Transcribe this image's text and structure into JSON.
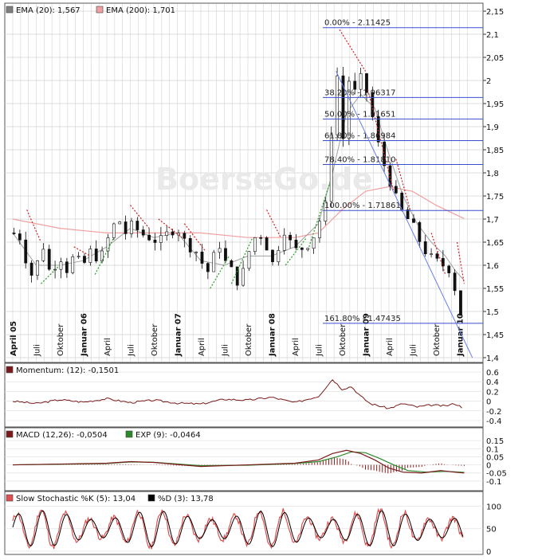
{
  "chart_data": [
    {
      "type": "candlestick",
      "panel": "price",
      "legend": [
        {
          "label": "EMA (20): 1,567",
          "color": "#7f7f7f"
        },
        {
          "label": "EMA (200): 1,701",
          "color": "#f0a0a0"
        }
      ],
      "watermark": "BoerseGo.de",
      "ylim": [
        1.4,
        2.15
      ],
      "yticks": [
        "2,15",
        "2,1",
        "2,05",
        "2",
        "1,95",
        "1,9",
        "1,85",
        "1,8",
        "1,75",
        "1,7",
        "1,65",
        "1,6",
        "1,55",
        "1,5",
        "1,45",
        "1,4"
      ],
      "xtick_labels": [
        {
          "label": "April 05",
          "major": true
        },
        {
          "label": "Juli",
          "major": false
        },
        {
          "label": "Oktober",
          "major": false
        },
        {
          "label": "Januar 06",
          "major": true
        },
        {
          "label": "April",
          "major": false
        },
        {
          "label": "Juli",
          "major": false
        },
        {
          "label": "Oktober",
          "major": false
        },
        {
          "label": "Januar 07",
          "major": true
        },
        {
          "label": "April",
          "major": false
        },
        {
          "label": "Juli",
          "major": false
        },
        {
          "label": "Oktober",
          "major": false
        },
        {
          "label": "Januar 08",
          "major": true
        },
        {
          "label": "April",
          "major": false
        },
        {
          "label": "Juli",
          "major": false
        },
        {
          "label": "Oktober",
          "major": false
        },
        {
          "label": "Januar 09",
          "major": true
        },
        {
          "label": "April",
          "major": false
        },
        {
          "label": "Juli",
          "major": false
        },
        {
          "label": "Oktober",
          "major": false
        },
        {
          "label": "Januar 10",
          "major": true
        }
      ],
      "fibonacci": [
        {
          "label": "0.00% - 2.11425",
          "value": 2.11425
        },
        {
          "label": "38.20% - 1.96317",
          "value": 1.96317
        },
        {
          "label": "50.00% - 1.91651",
          "value": 1.91651
        },
        {
          "label": "61.80% - 1.86984",
          "value": 1.86984
        },
        {
          "label": "78.40% - 1.81810",
          "value": 1.8181
        },
        {
          "label": "100.00% - 1.71861",
          "value": 1.71861
        },
        {
          "label": "161.80% - 1.47435",
          "value": 1.47435
        }
      ],
      "close_path": [
        [
          0,
          1.67
        ],
        [
          0.3,
          1.66
        ],
        [
          0.5,
          1.62
        ],
        [
          0.8,
          1.58
        ],
        [
          1.0,
          1.6
        ],
        [
          1.3,
          1.64
        ],
        [
          1.6,
          1.58
        ],
        [
          2.0,
          1.62
        ],
        [
          2.3,
          1.59
        ],
        [
          2.6,
          1.62
        ],
        [
          3.0,
          1.6
        ],
        [
          3.3,
          1.63
        ],
        [
          3.7,
          1.61
        ],
        [
          4.0,
          1.65
        ],
        [
          4.2,
          1.68
        ],
        [
          4.5,
          1.7
        ],
        [
          4.8,
          1.67
        ],
        [
          5.1,
          1.69
        ],
        [
          5.4,
          1.67
        ],
        [
          5.8,
          1.66
        ],
        [
          6.2,
          1.65
        ],
        [
          6.6,
          1.67
        ],
        [
          7.0,
          1.68
        ],
        [
          7.2,
          1.66
        ],
        [
          7.5,
          1.64
        ],
        [
          7.8,
          1.63
        ],
        [
          8.1,
          1.6
        ],
        [
          8.4,
          1.58
        ],
        [
          8.7,
          1.66
        ],
        [
          9.0,
          1.61
        ],
        [
          9.3,
          1.59
        ],
        [
          9.6,
          1.56
        ],
        [
          9.9,
          1.6
        ],
        [
          10.1,
          1.64
        ],
        [
          10.4,
          1.67
        ],
        [
          10.7,
          1.66
        ],
        [
          11.0,
          1.6
        ],
        [
          11.2,
          1.62
        ],
        [
          11.5,
          1.68
        ],
        [
          11.8,
          1.65
        ],
        [
          12.1,
          1.63
        ],
        [
          12.4,
          1.64
        ],
        [
          12.7,
          1.65
        ],
        [
          13.0,
          1.69
        ],
        [
          13.3,
          1.73
        ],
        [
          13.5,
          1.82
        ],
        [
          13.7,
          2.1
        ],
        [
          13.9,
          1.92
        ],
        [
          14.1,
          1.86
        ],
        [
          14.3,
          2.0
        ],
        [
          14.5,
          1.95
        ],
        [
          14.7,
          2.05
        ],
        [
          14.9,
          1.96
        ],
        [
          15.1,
          1.98
        ],
        [
          15.3,
          1.92
        ],
        [
          15.6,
          1.85
        ],
        [
          15.9,
          1.8
        ],
        [
          16.2,
          1.76
        ],
        [
          16.5,
          1.72
        ],
        [
          16.8,
          1.7
        ],
        [
          17.1,
          1.68
        ],
        [
          17.4,
          1.64
        ],
        [
          17.7,
          1.62
        ],
        [
          18.0,
          1.61
        ],
        [
          18.3,
          1.6
        ],
        [
          18.6,
          1.59
        ],
        [
          18.8,
          1.55
        ],
        [
          19.0,
          1.5
        ],
        [
          19.2,
          1.48
        ]
      ],
      "ema20_path": [
        [
          0,
          1.67
        ],
        [
          1,
          1.6
        ],
        [
          2,
          1.6
        ],
        [
          3,
          1.61
        ],
        [
          4,
          1.64
        ],
        [
          5,
          1.68
        ],
        [
          6,
          1.66
        ],
        [
          7,
          1.67
        ],
        [
          8,
          1.61
        ],
        [
          9,
          1.6
        ],
        [
          10,
          1.62
        ],
        [
          11,
          1.62
        ],
        [
          12,
          1.64
        ],
        [
          13,
          1.69
        ],
        [
          13.6,
          1.8
        ],
        [
          14.2,
          1.93
        ],
        [
          14.8,
          1.97
        ],
        [
          15.4,
          1.94
        ],
        [
          16.0,
          1.84
        ],
        [
          16.6,
          1.75
        ],
        [
          17.2,
          1.69
        ],
        [
          17.8,
          1.65
        ],
        [
          18.4,
          1.62
        ],
        [
          18.8,
          1.59
        ],
        [
          19.2,
          1.567
        ]
      ],
      "ema200_path": [
        [
          0,
          1.7
        ],
        [
          2,
          1.68
        ],
        [
          4,
          1.67
        ],
        [
          6,
          1.67
        ],
        [
          8,
          1.67
        ],
        [
          10,
          1.66
        ],
        [
          12,
          1.66
        ],
        [
          13,
          1.67
        ],
        [
          14,
          1.72
        ],
        [
          15,
          1.76
        ],
        [
          16,
          1.77
        ],
        [
          17,
          1.76
        ],
        [
          18,
          1.73
        ],
        [
          19.2,
          1.701
        ]
      ]
    },
    {
      "type": "line",
      "panel": "momentum",
      "legend": [
        {
          "label": "Momentum: (12): -0,1501",
          "color": "#7a1a1a"
        }
      ],
      "ylim": [
        -0.45,
        0.65
      ],
      "yticks": [
        "0.6",
        "0.4",
        "0.2",
        "0",
        "-0.2",
        "-0.4"
      ],
      "values": [
        [
          0,
          0.0
        ],
        [
          1,
          -0.05
        ],
        [
          2,
          0.03
        ],
        [
          3,
          -0.02
        ],
        [
          4,
          0.05
        ],
        [
          5,
          -0.03
        ],
        [
          6,
          0.02
        ],
        [
          7,
          -0.04
        ],
        [
          8,
          -0.06
        ],
        [
          9,
          0.04
        ],
        [
          10,
          0.02
        ],
        [
          11,
          0.08
        ],
        [
          12,
          -0.03
        ],
        [
          13,
          0.1
        ],
        [
          13.6,
          0.45
        ],
        [
          14.0,
          0.25
        ],
        [
          14.4,
          0.3
        ],
        [
          14.8,
          0.1
        ],
        [
          15.2,
          -0.05
        ],
        [
          15.6,
          -0.1
        ],
        [
          16.0,
          -0.15
        ],
        [
          16.6,
          -0.05
        ],
        [
          17.2,
          -0.12
        ],
        [
          17.8,
          -0.08
        ],
        [
          18.4,
          -0.1
        ],
        [
          18.8,
          -0.05
        ],
        [
          19.2,
          -0.15
        ]
      ]
    },
    {
      "type": "macd",
      "panel": "macd",
      "legend": [
        {
          "label": "MACD (12,26): -0,0504",
          "color": "#7a1a1a"
        },
        {
          "label": "EXP (9): -0,0464",
          "color": "#2a8a2a"
        }
      ],
      "ylim": [
        -0.14,
        0.18
      ],
      "yticks": [
        "0.15",
        "0.1",
        "0.05",
        "0",
        "-0.05",
        "-0.1"
      ],
      "macd": [
        [
          0,
          0.0
        ],
        [
          2,
          0.005
        ],
        [
          4,
          0.01
        ],
        [
          5,
          0.02
        ],
        [
          6,
          0.015
        ],
        [
          8,
          -0.01
        ],
        [
          10,
          0.0
        ],
        [
          12,
          0.01
        ],
        [
          13,
          0.03
        ],
        [
          13.6,
          0.07
        ],
        [
          14.2,
          0.09
        ],
        [
          14.8,
          0.07
        ],
        [
          15.4,
          0.03
        ],
        [
          16.0,
          -0.02
        ],
        [
          16.6,
          -0.045
        ],
        [
          17.4,
          -0.05
        ],
        [
          18.2,
          -0.035
        ],
        [
          18.8,
          -0.045
        ],
        [
          19.2,
          -0.0504
        ]
      ],
      "signal": [
        [
          0,
          0.0
        ],
        [
          2,
          0.004
        ],
        [
          4,
          0.008
        ],
        [
          5,
          0.018
        ],
        [
          6,
          0.016
        ],
        [
          8,
          -0.005
        ],
        [
          10,
          -0.002
        ],
        [
          12,
          0.008
        ],
        [
          13,
          0.02
        ],
        [
          13.8,
          0.05
        ],
        [
          14.4,
          0.08
        ],
        [
          15.0,
          0.075
        ],
        [
          15.6,
          0.04
        ],
        [
          16.2,
          0.0
        ],
        [
          16.8,
          -0.035
        ],
        [
          17.6,
          -0.045
        ],
        [
          18.4,
          -0.04
        ],
        [
          19.2,
          -0.0464
        ]
      ]
    },
    {
      "type": "line",
      "panel": "stochastic",
      "legend": [
        {
          "label": "Slow Stochastic %K (5): 13,04",
          "color": "#e05050"
        },
        {
          "label": "%D (3): 13,78",
          "color": "#000000"
        }
      ],
      "ylim": [
        0,
        115
      ],
      "yticks": [
        "100",
        "50",
        "0"
      ],
      "k_last": 13.04,
      "d_last": 13.78
    }
  ]
}
